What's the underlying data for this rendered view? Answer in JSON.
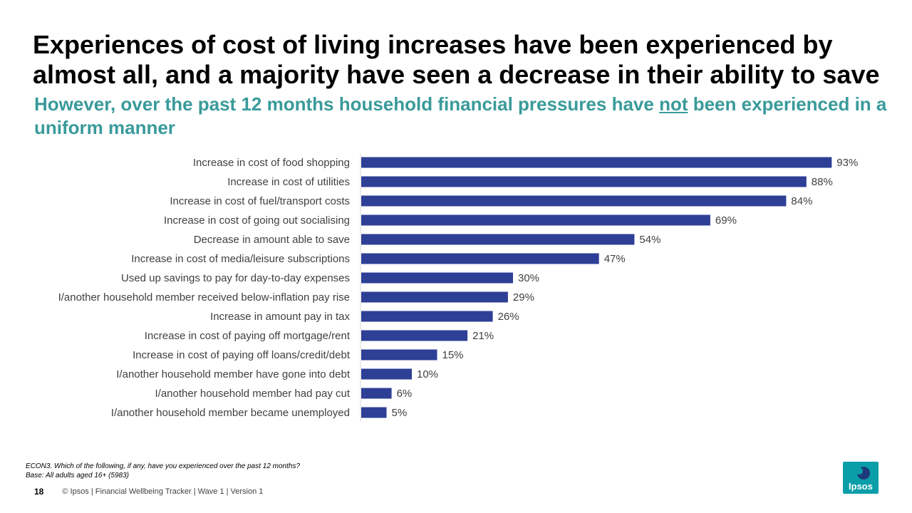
{
  "title": "Experiences of cost of living increases have been experienced by almost all, and a majority have seen a decrease in their ability to save",
  "subtitle": {
    "before": "However, over the past 12 months household financial pressures have ",
    "emphasis": "not",
    "after": " been experienced in a uniform manner"
  },
  "chart_data": {
    "type": "bar",
    "orientation": "horizontal",
    "bar_color": "#2e3f96",
    "value_suffix": "%",
    "xlim": [
      0,
      100
    ],
    "categories": [
      "Increase in cost of food shopping",
      "Increase in cost of utilities",
      "Increase in cost of fuel/transport costs",
      "Increase in cost of going out socialising",
      "Decrease in amount able to save",
      "Increase in cost of media/leisure subscriptions",
      "Used up savings to pay for day-to-day expenses",
      "I/another household member received below-inflation pay rise",
      "Increase in amount pay in tax",
      "Increase in cost of paying off mortgage/rent",
      "Increase in cost of paying off loans/credit/debt",
      "I/another household member have gone into debt",
      "I/another household member had pay cut",
      "I/another household member became unemployed"
    ],
    "values": [
      93,
      88,
      84,
      69,
      54,
      47,
      30,
      29,
      26,
      21,
      15,
      10,
      6,
      5
    ]
  },
  "footnote": {
    "question": "ECON3. Which of the following, if any,  have you experienced over the past 12 months?",
    "base": "Base: All adults aged 16+ (5983)"
  },
  "footer": {
    "page_number": "18",
    "text": "© Ipsos | Financial Wellbeing Tracker | Wave 1 | Version 1"
  },
  "logo": {
    "text": "Ipsos",
    "color": "#0a9ea8"
  }
}
